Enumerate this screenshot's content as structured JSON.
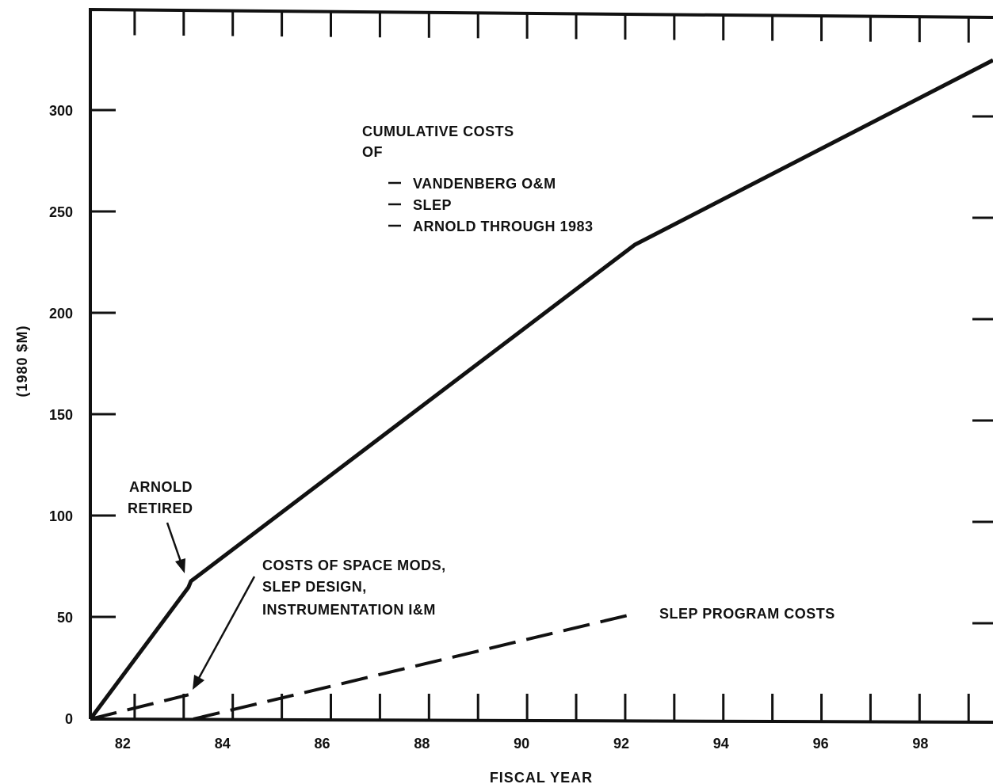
{
  "chart_data": {
    "type": "line",
    "title": "",
    "xlabel": "FISCAL YEAR",
    "ylabel": "(1980 $M)",
    "xlim": [
      81.5,
      99.9
    ],
    "ylim": [
      0,
      350
    ],
    "x_ticks": [
      82,
      84,
      86,
      88,
      90,
      92,
      94,
      96,
      98
    ],
    "x_tick_labels": [
      "82",
      "84",
      "86",
      "88",
      "90",
      "92",
      "94",
      "96",
      "98"
    ],
    "y_ticks": [
      0,
      50,
      100,
      150,
      200,
      250,
      300
    ],
    "y_tick_labels": [
      "0",
      "50",
      "100",
      "150",
      "200",
      "250",
      "300"
    ],
    "grid": false,
    "legend": "none",
    "series": [
      {
        "style": "solid",
        "color": "#111111",
        "points": [
          [
            81.5,
            0
          ],
          [
            83.5,
            65
          ],
          [
            83.55,
            68
          ],
          [
            92.6,
            234
          ],
          [
            99.9,
            325
          ]
        ]
      },
      {
        "style": "dashed",
        "color": "#111111",
        "points": [
          [
            81.5,
            0
          ],
          [
            83.5,
            12
          ]
        ]
      },
      {
        "style": "dashed",
        "color": "#111111",
        "points": [
          [
            83.6,
            0
          ],
          [
            92.6,
            52
          ]
        ]
      }
    ],
    "annotations": {
      "cumulative_title": [
        "CUMULATIVE COSTS",
        "OF"
      ],
      "cumulative_items": [
        "VANDENBERG O&M",
        "SLEP",
        "ARNOLD THROUGH 1983"
      ],
      "arnold": [
        "ARNOLD",
        "RETIRED"
      ],
      "space_mods": [
        "COSTS OF SPACE MODS,",
        "SLEP DESIGN,",
        "INSTRUMENTATION I&M"
      ],
      "slep_program": "SLEP PROGRAM COSTS"
    }
  }
}
